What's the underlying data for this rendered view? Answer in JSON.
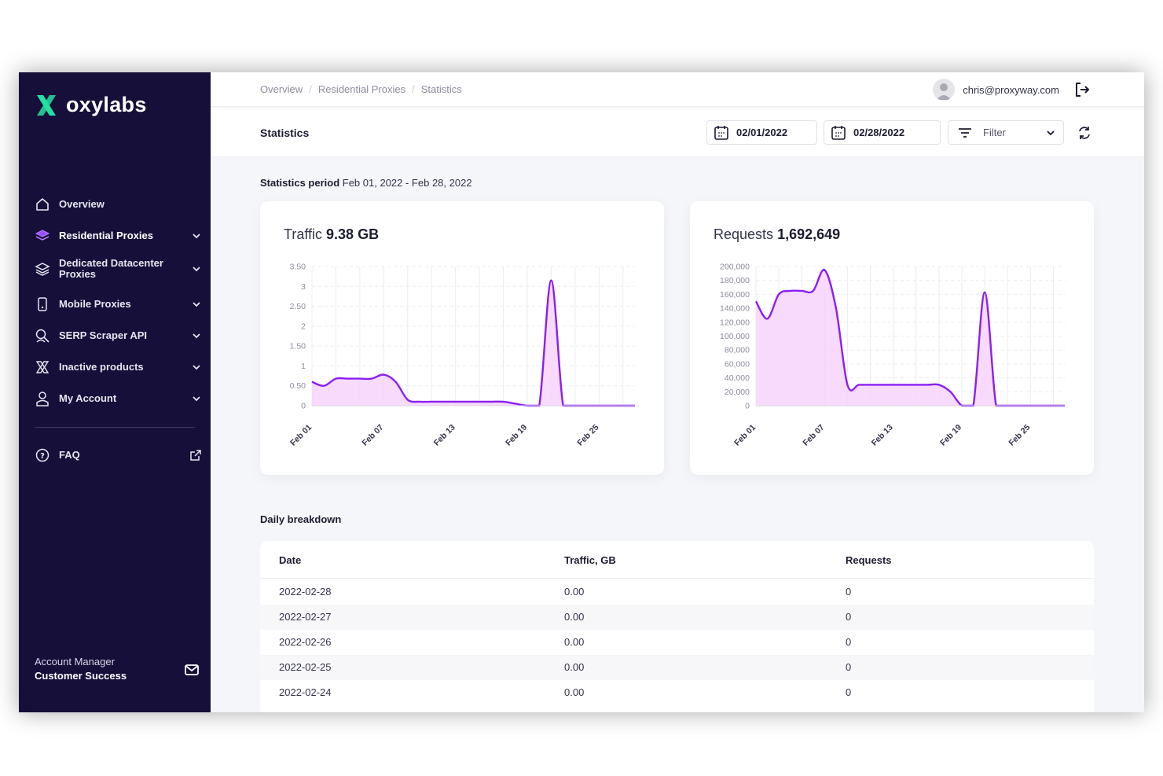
{
  "brand": {
    "name": "oxylabs"
  },
  "sidebar": {
    "items": [
      {
        "label": "Overview",
        "icon": "home-icon",
        "chevron": false
      },
      {
        "label": "Residential Proxies",
        "icon": "layers-icon",
        "chevron": true,
        "active": true
      },
      {
        "label": "Dedicated Datacenter Proxies",
        "icon": "server-stack-icon",
        "chevron": true
      },
      {
        "label": "Mobile Proxies",
        "icon": "mobile-icon",
        "chevron": true
      },
      {
        "label": "SERP Scraper API",
        "icon": "search-person-icon",
        "chevron": true
      },
      {
        "label": "Inactive products",
        "icon": "x-mark-icon",
        "chevron": true
      },
      {
        "label": "My Account",
        "icon": "user-icon",
        "chevron": true
      }
    ],
    "faq_label": "FAQ",
    "manager": {
      "role": "Account Manager",
      "name": "Customer Success"
    }
  },
  "breadcrumb": [
    "Overview",
    "Residential Proxies",
    "Statistics"
  ],
  "user": {
    "email": "chris@proxyway.com"
  },
  "toolbar": {
    "title": "Statistics",
    "date_from": "02/01/2022",
    "date_to": "02/28/2022",
    "filter_label": "Filter"
  },
  "period": {
    "label": "Statistics period",
    "range": "Feb 01, 2022 - Feb 28, 2022"
  },
  "traffic": {
    "label": "Traffic",
    "total": "9.38 GB"
  },
  "requests": {
    "label": "Requests",
    "total": "1,692,649"
  },
  "chart_data": [
    {
      "type": "area",
      "title": "Traffic 9.38 GB",
      "x": [
        "Feb 01",
        "Feb 02",
        "Feb 03",
        "Feb 04",
        "Feb 05",
        "Feb 06",
        "Feb 07",
        "Feb 08",
        "Feb 09",
        "Feb 10",
        "Feb 11",
        "Feb 12",
        "Feb 13",
        "Feb 14",
        "Feb 15",
        "Feb 16",
        "Feb 17",
        "Feb 18",
        "Feb 19",
        "Feb 20",
        "Feb 21",
        "Feb 22",
        "Feb 23",
        "Feb 24",
        "Feb 25",
        "Feb 26",
        "Feb 27",
        "Feb 28"
      ],
      "x_ticks": [
        "Feb 01",
        "Feb 07",
        "Feb 13",
        "Feb 19",
        "Feb 25"
      ],
      "values": [
        0.6,
        0.5,
        0.68,
        0.68,
        0.68,
        0.68,
        0.78,
        0.6,
        0.15,
        0.1,
        0.1,
        0.1,
        0.1,
        0.1,
        0.1,
        0.1,
        0.1,
        0.05,
        0,
        0,
        3.15,
        0,
        0,
        0,
        0,
        0,
        0,
        0
      ],
      "y_ticks": [
        "0",
        "0.50",
        "1",
        "1.50",
        "2",
        "2.50",
        "3",
        "3.50"
      ],
      "ylim": [
        0,
        3.5
      ],
      "grid": true,
      "color": "#8a1ff0",
      "fill": "#f6d3fb"
    },
    {
      "type": "area",
      "title": "Requests 1,692,649",
      "x": [
        "Feb 01",
        "Feb 02",
        "Feb 03",
        "Feb 04",
        "Feb 05",
        "Feb 06",
        "Feb 07",
        "Feb 08",
        "Feb 09",
        "Feb 10",
        "Feb 11",
        "Feb 12",
        "Feb 13",
        "Feb 14",
        "Feb 15",
        "Feb 16",
        "Feb 17",
        "Feb 18",
        "Feb 19",
        "Feb 20",
        "Feb 21",
        "Feb 22",
        "Feb 23",
        "Feb 24",
        "Feb 25",
        "Feb 26",
        "Feb 27",
        "Feb 28"
      ],
      "x_ticks": [
        "Feb 01",
        "Feb 07",
        "Feb 13",
        "Feb 19",
        "Feb 25"
      ],
      "values": [
        150000,
        125000,
        160000,
        165000,
        165000,
        165000,
        195000,
        140000,
        30000,
        30000,
        30000,
        30000,
        30000,
        30000,
        30000,
        30000,
        30000,
        20000,
        0,
        0,
        163000,
        0,
        0,
        0,
        0,
        0,
        0,
        0
      ],
      "y_ticks": [
        "0",
        "20,000",
        "40,000",
        "60,000",
        "80,000",
        "100,000",
        "120,000",
        "140,000",
        "160,000",
        "180,000",
        "200,000"
      ],
      "ylim": [
        0,
        200000
      ],
      "grid": true,
      "color": "#8a1ff0",
      "fill": "#f6d3fb"
    }
  ],
  "daily": {
    "title": "Daily breakdown",
    "columns": [
      "Date",
      "Traffic, GB",
      "Requests"
    ],
    "rows": [
      [
        "2022-02-28",
        "0.00",
        "0"
      ],
      [
        "2022-02-27",
        "0.00",
        "0"
      ],
      [
        "2022-02-26",
        "0.00",
        "0"
      ],
      [
        "2022-02-25",
        "0.00",
        "0"
      ],
      [
        "2022-02-24",
        "0.00",
        "0"
      ]
    ]
  }
}
